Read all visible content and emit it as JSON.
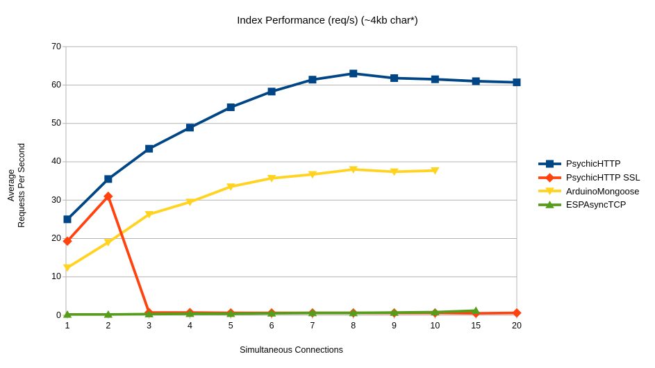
{
  "chart_data": {
    "type": "line",
    "title": "Index Performance (req/s) (~4kb char*)",
    "xlabel": "Simultaneous Connections",
    "ylabel": "Average\nRequests Per Second",
    "categories": [
      "1",
      "2",
      "3",
      "4",
      "5",
      "6",
      "7",
      "8",
      "9",
      "10",
      "15",
      "20"
    ],
    "ylim": [
      0,
      70
    ],
    "ytick_step": 10,
    "yticks": [
      0,
      10,
      20,
      30,
      40,
      50,
      60,
      70
    ],
    "grid": "horizontal",
    "legend_position": "right",
    "series": [
      {
        "name": "PsychicHTTP",
        "color": "#004586",
        "marker": "square",
        "values": [
          25.0,
          35.5,
          43.4,
          48.9,
          54.2,
          58.3,
          61.4,
          63.0,
          61.8,
          61.5,
          61.0,
          60.7
        ]
      },
      {
        "name": "PsychicHTTP SSL",
        "color": "#FF420E",
        "marker": "diamond",
        "values": [
          19.3,
          31.0,
          0.7,
          0.7,
          0.6,
          0.6,
          0.6,
          0.6,
          0.6,
          0.6,
          0.5,
          0.6
        ]
      },
      {
        "name": "ArduinoMongoose",
        "color": "#FFD320",
        "marker": "triangle-down",
        "values": [
          12.4,
          19.0,
          26.3,
          29.5,
          33.5,
          35.7,
          36.7,
          38.0,
          37.4,
          37.7,
          null,
          null
        ]
      },
      {
        "name": "ESPAsyncTCP",
        "color": "#579D1C",
        "marker": "triangle-up",
        "values": [
          0.2,
          0.2,
          0.3,
          0.4,
          0.4,
          0.5,
          0.6,
          0.6,
          0.7,
          0.8,
          1.2,
          null
        ]
      }
    ],
    "colors": {
      "grid": "#b3b3b3",
      "axis": "#b3b3b3",
      "text": "#000000",
      "background": "#ffffff"
    }
  }
}
